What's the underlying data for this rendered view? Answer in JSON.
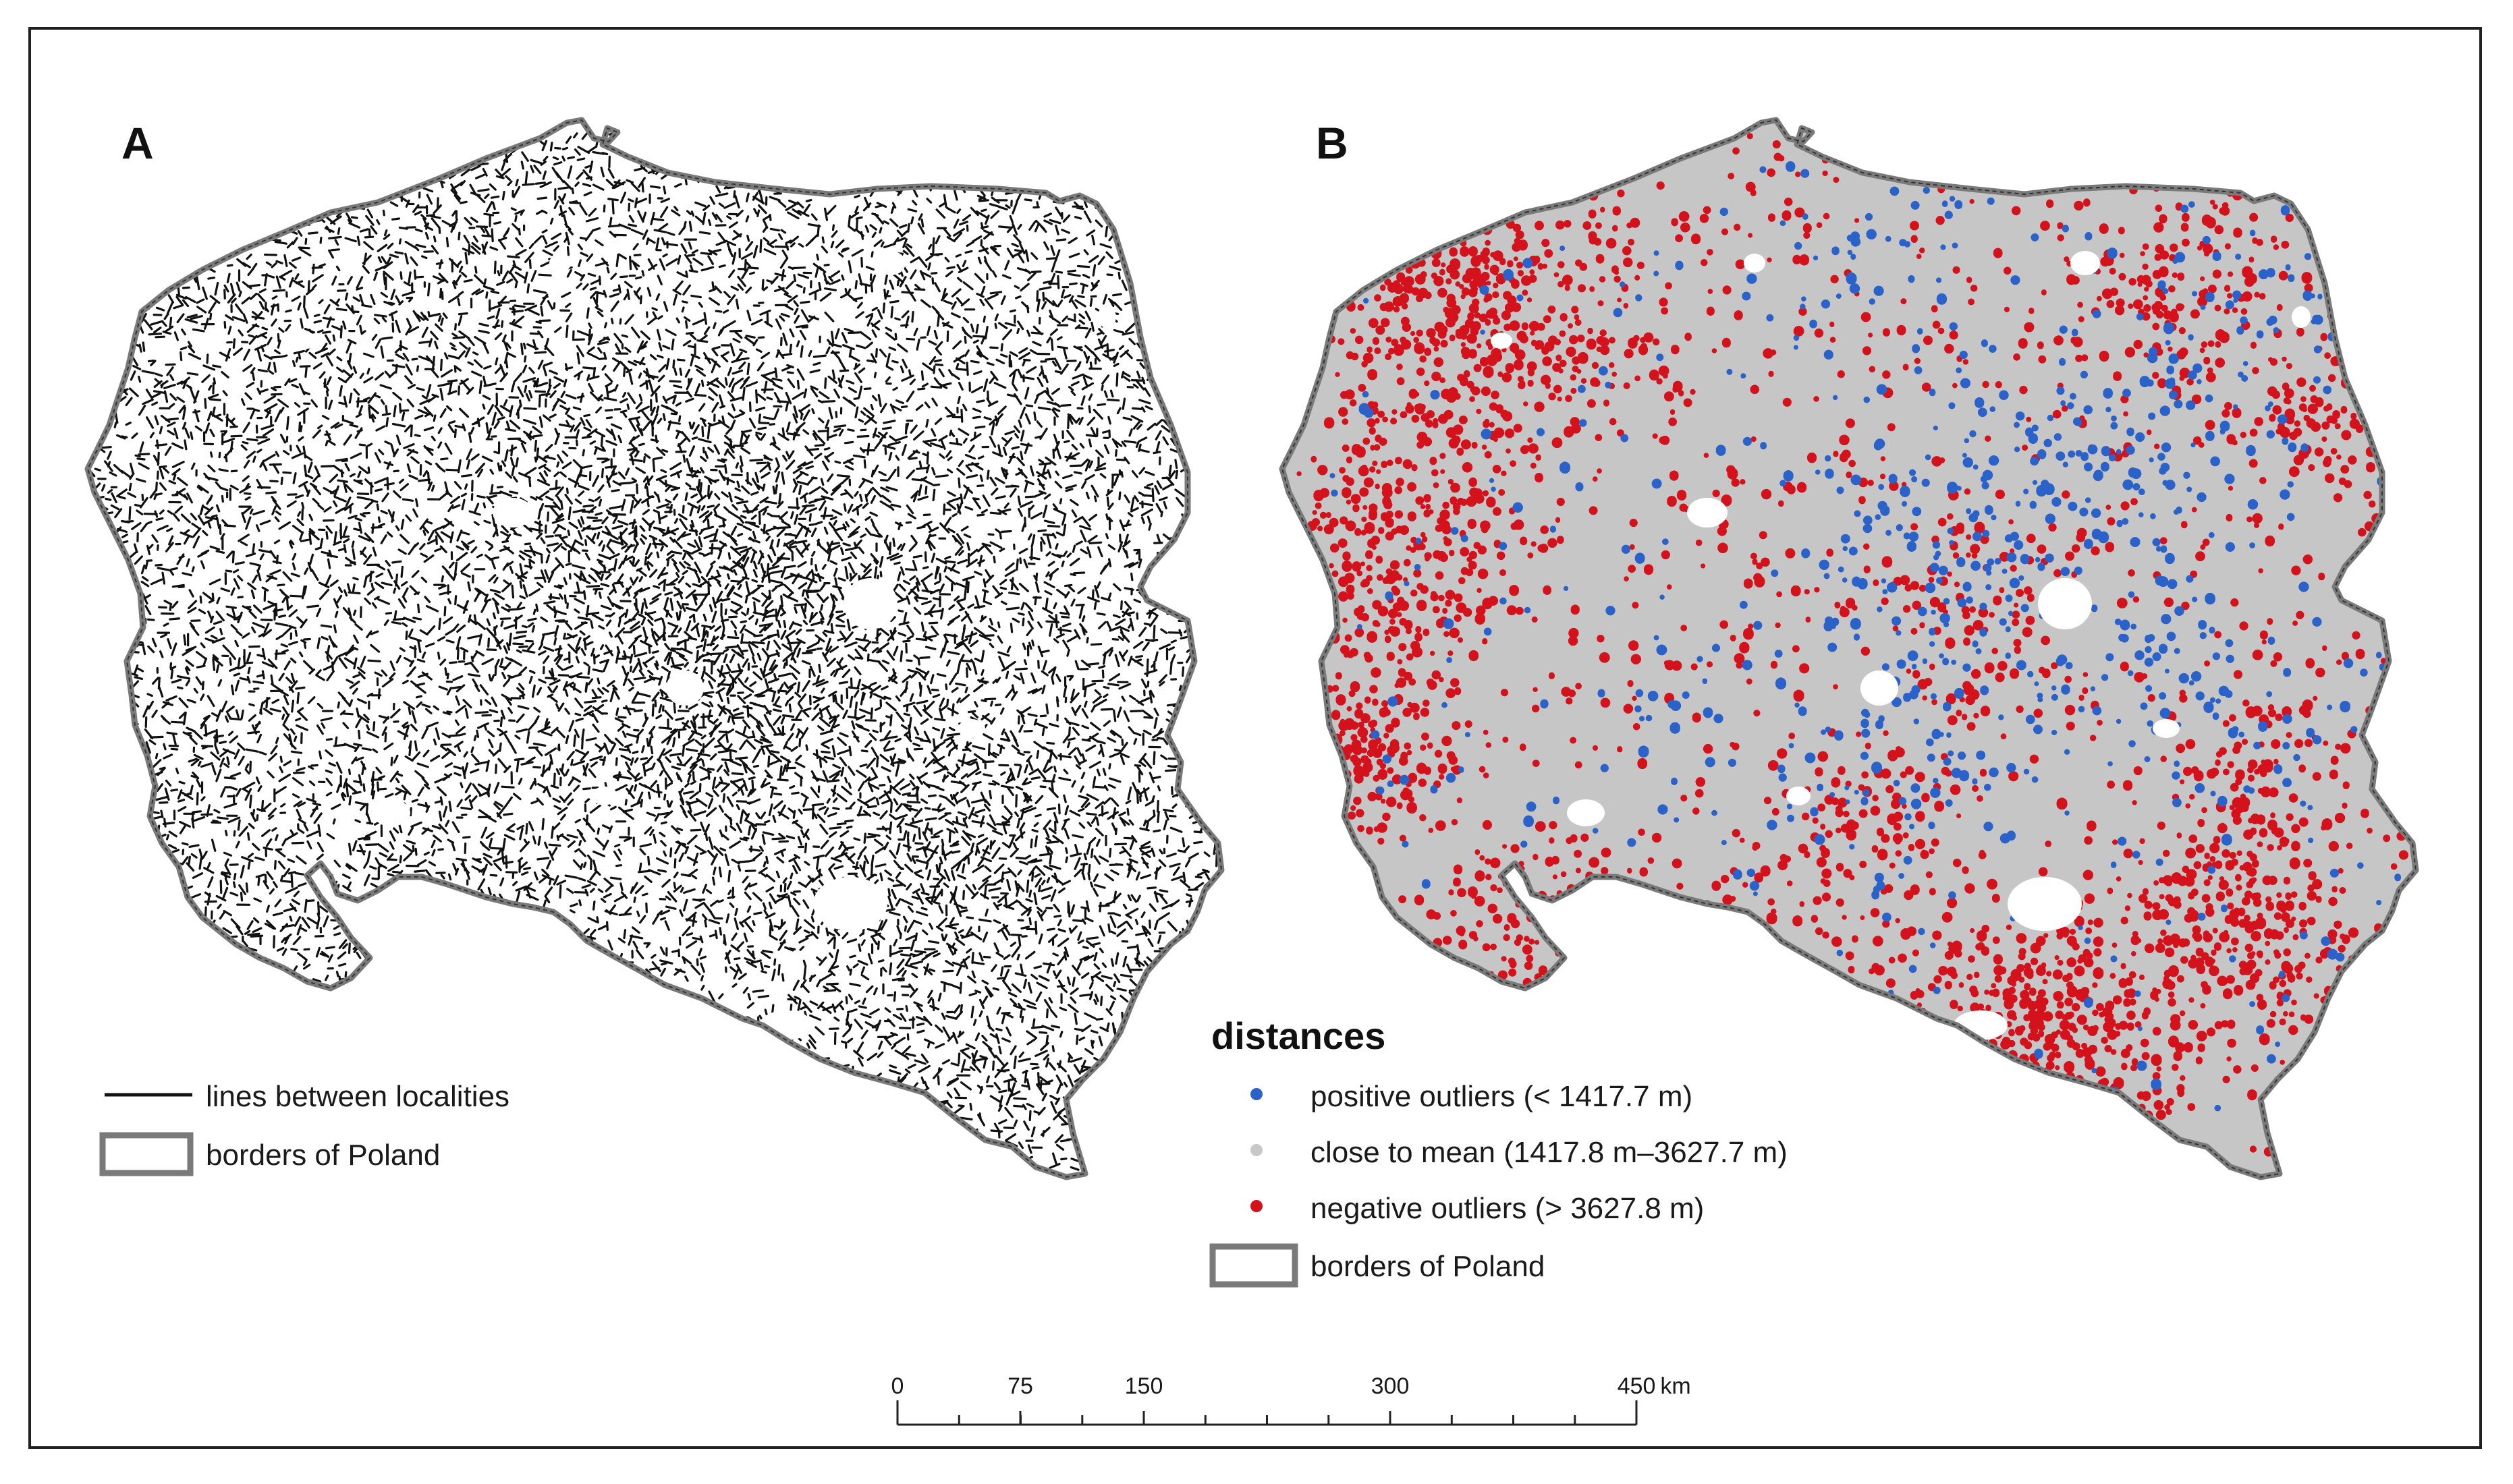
{
  "panels": {
    "a": {
      "letter": "A"
    },
    "b": {
      "letter": "B"
    }
  },
  "legend_a": {
    "items": [
      {
        "label": "lines between localities",
        "symbol": "line",
        "color": "#111111"
      },
      {
        "label": "borders of Poland",
        "symbol": "border-box",
        "color": "#777777"
      }
    ]
  },
  "legend_b": {
    "title": "distances",
    "items": [
      {
        "label": "positive outliers (< 1417.7 m)",
        "symbol": "dot",
        "color": "#2a62c9"
      },
      {
        "label": "close to mean (1417.8 m–3627.7 m)",
        "symbol": "dot",
        "color": "#c8c8c8"
      },
      {
        "label": "negative outliers (> 3627.8 m)",
        "symbol": "dot",
        "color": "#d4121c"
      },
      {
        "label": "borders of Poland",
        "symbol": "border-box",
        "color": "#777777"
      }
    ]
  },
  "scale_bar": {
    "ticks": [
      "0",
      "75",
      "150",
      "300",
      "450"
    ],
    "unit": "km"
  },
  "colors": {
    "lines": "#111111",
    "border": "#7a7a7a",
    "positive": "#2a62c9",
    "mean": "#c6c6c6",
    "negative": "#d4121c"
  }
}
